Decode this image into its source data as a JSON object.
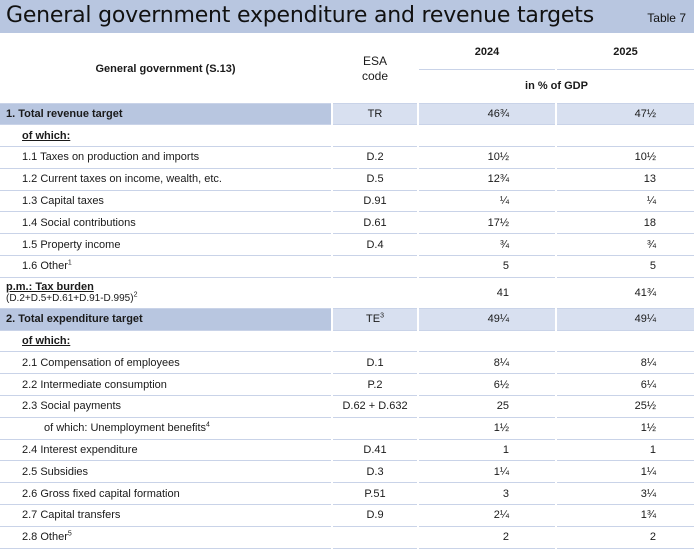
{
  "title": "General government expenditure and revenue targets",
  "table_no": "Table 7",
  "header": {
    "row_label": "General government (S.13)",
    "esa_label_1": "ESA",
    "esa_label_2": "code",
    "year_1": "2024",
    "year_2": "2025",
    "unit": "in % of GDP"
  },
  "rows": [
    {
      "label": "1. Total revenue target",
      "esa": "TR",
      "y2024": "46¾",
      "y2025": "47½"
    },
    {
      "label": "of which:",
      "esa": "",
      "y2024": "",
      "y2025": ""
    },
    {
      "label": "1.1 Taxes on production and imports",
      "esa": "D.2",
      "y2024": "10½",
      "y2025": "10½"
    },
    {
      "label": "1.2 Current taxes on income, wealth, etc.",
      "esa": "D.5",
      "y2024": "12¾",
      "y2025": "13"
    },
    {
      "label": "1.3 Capital taxes",
      "esa": "D.91",
      "y2024": "¼",
      "y2025": "¼"
    },
    {
      "label": "1.4 Social contributions",
      "esa": "D.61",
      "y2024": "17½",
      "y2025": "18"
    },
    {
      "label": "1.5 Property income",
      "esa": "D.4",
      "y2024": "¾",
      "y2025": "¾"
    },
    {
      "label": "1.6 Other",
      "sup": "1",
      "esa": "",
      "y2024": "5",
      "y2025": "5"
    },
    {
      "label": "p.m.: Tax burden",
      "sublabel": "(D.2+D.5+D.61+D.91-D.995)",
      "sup": "2",
      "esa": "",
      "y2024": "41",
      "y2025": "41¾"
    },
    {
      "label": "2. Total expenditure target",
      "esa": "TE",
      "esa_sup": "3",
      "y2024": "49¼",
      "y2025": "49¼"
    },
    {
      "label": "of which:",
      "esa": "",
      "y2024": "",
      "y2025": ""
    },
    {
      "label": "2.1 Compensation of employees",
      "esa": "D.1",
      "y2024": "8¼",
      "y2025": "8¼"
    },
    {
      "label": "2.2 Intermediate consumption",
      "esa": "P.2",
      "y2024": "6½",
      "y2025": "6¼"
    },
    {
      "label": "2.3 Social payments",
      "esa": "D.62 + D.632",
      "y2024": "25",
      "y2025": "25½"
    },
    {
      "label": "of which: Unemployment benefits",
      "sup": "4",
      "esa": "",
      "y2024": "1½",
      "y2025": "1½"
    },
    {
      "label": "2.4 Interest expenditure",
      "esa": "D.41",
      "y2024": "1",
      "y2025": "1"
    },
    {
      "label": "2.5 Subsidies",
      "esa": "D.3",
      "y2024": "1¼",
      "y2025": "1¼"
    },
    {
      "label": "2.6 Gross fixed capital formation",
      "esa": "P.51",
      "y2024": "3",
      "y2025": "3¼"
    },
    {
      "label": "2.7 Capital transfers",
      "esa": "D.9",
      "y2024": "2¼",
      "y2025": "1¾"
    },
    {
      "label": "2.8 Other",
      "sup": "5",
      "esa": "",
      "y2024": "2",
      "y2025": "2"
    }
  ]
}
